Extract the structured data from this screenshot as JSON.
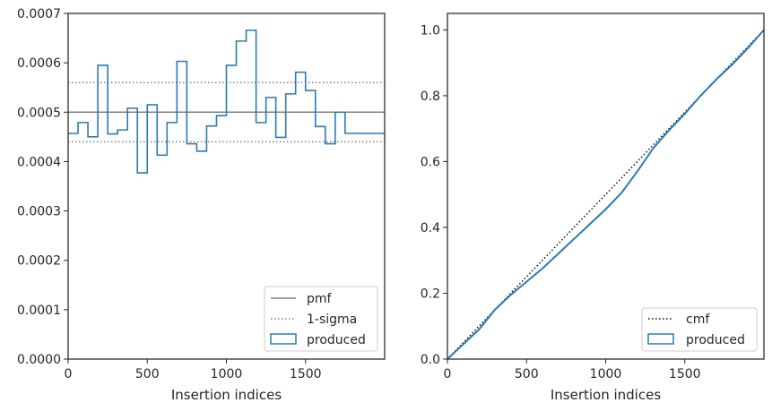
{
  "colors": {
    "produced": "#2b7bb4",
    "pmf": "#808080",
    "sigma": "#808080",
    "cmf": "#000000",
    "spine": "#262626"
  },
  "chart_data": [
    {
      "type": "histogram",
      "xlabel": "Insertion indices",
      "ylabel": "",
      "xlim": [
        0,
        2000
      ],
      "ylim": [
        0,
        0.0007
      ],
      "xticks": [
        "0",
        "500",
        "1000",
        "1500"
      ],
      "yticks": [
        "0.0000",
        "0.0001",
        "0.0002",
        "0.0003",
        "0.0004",
        "0.0005",
        "0.0006",
        "0.0007"
      ],
      "pmf": 0.0005,
      "sigma_band": [
        0.00044,
        0.00056
      ],
      "bin_edges": [
        0,
        62.5,
        125,
        187.5,
        250,
        312.5,
        375,
        437.5,
        500,
        562.5,
        625,
        687.5,
        750,
        812.5,
        875,
        937.5,
        1000,
        1062.5,
        1125,
        1187.5,
        1250,
        1312.5,
        1375,
        1437.5,
        1500,
        1562.5,
        1625,
        1687.5,
        1750,
        1812.5,
        1875,
        1937.5,
        2000
      ],
      "counts": [
        0.000457,
        0.000479,
        0.00045,
        0.000595,
        0.000456,
        0.000464,
        0.000508,
        0.000377,
        0.000515,
        0.000413,
        0.000479,
        0.000603,
        0.000436,
        0.000421,
        0.000472,
        0.000493,
        0.000595,
        0.000644,
        0.000666,
        0.000479,
        0.00053,
        0.000449,
        0.000537,
        0.000581,
        0.000544,
        0.000471,
        0.000436,
        0.0005,
        0.000457,
        0.000457,
        0.000457,
        0.000457
      ],
      "legend": {
        "placement": "lower-right",
        "entries": [
          "pmf",
          "1-sigma",
          "produced"
        ]
      },
      "grid": false
    },
    {
      "type": "line",
      "xlabel": "Insertion indices",
      "ylabel": "",
      "xlim": [
        0,
        2000
      ],
      "ylim": [
        0,
        1.05
      ],
      "xticks": [
        "0",
        "500",
        "1000",
        "1500"
      ],
      "yticks": [
        "0.0",
        "0.2",
        "0.4",
        "0.6",
        "0.8",
        "1.0"
      ],
      "series": [
        {
          "name": "cmf",
          "style": "dotted",
          "x": [
            0,
            2000
          ],
          "y": [
            0,
            1
          ]
        },
        {
          "name": "produced",
          "style": "solid",
          "x": [
            0,
            100,
            200,
            300,
            400,
            500,
            600,
            700,
            800,
            900,
            1000,
            1100,
            1200,
            1300,
            1400,
            1500,
            1600,
            1700,
            1800,
            1900,
            2000
          ],
          "y": [
            0,
            0.045,
            0.09,
            0.15,
            0.195,
            0.235,
            0.275,
            0.32,
            0.365,
            0.41,
            0.455,
            0.505,
            0.57,
            0.64,
            0.695,
            0.745,
            0.8,
            0.85,
            0.895,
            0.945,
            1.0
          ]
        }
      ],
      "legend": {
        "placement": "lower-right",
        "entries": [
          "cmf",
          "produced"
        ]
      },
      "grid": false
    }
  ]
}
